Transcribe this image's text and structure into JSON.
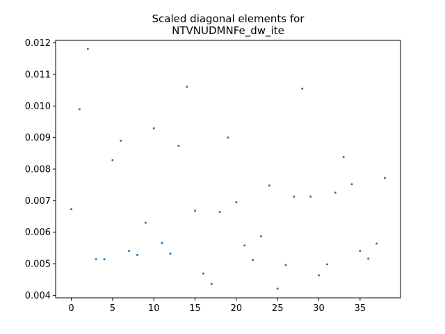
{
  "chart_data": {
    "type": "scatter",
    "title_lines": [
      "Scaled diagonal elements for",
      "NTVNUDMNFe_dw_ite"
    ],
    "xlabel": "",
    "ylabel": "",
    "xlim": [
      -1.9,
      39.9
    ],
    "ylim": [
      0.00392,
      0.01208
    ],
    "x_ticks": [
      0,
      5,
      10,
      15,
      20,
      25,
      30,
      35
    ],
    "y_ticks": [
      0.004,
      0.005,
      0.006,
      0.007,
      0.008,
      0.009,
      0.01,
      0.011,
      0.012
    ],
    "y_tick_labels": [
      "0.004",
      "0.005",
      "0.006",
      "0.007",
      "0.008",
      "0.009",
      "0.010",
      "0.011",
      "0.012"
    ],
    "grid": false,
    "marker_color": "#1f77b4",
    "x": [
      0,
      1,
      2,
      3,
      4,
      5,
      6,
      7,
      8,
      9,
      10,
      11,
      12,
      13,
      14,
      15,
      16,
      17,
      18,
      19,
      20,
      21,
      22,
      23,
      24,
      25,
      26,
      27,
      28,
      29,
      30,
      31,
      32,
      33,
      34,
      35,
      36,
      37,
      38
    ],
    "y": [
      0.00673,
      0.0099,
      0.01181,
      0.00514,
      0.00514,
      0.00828,
      0.0089,
      0.00541,
      0.00528,
      0.0063,
      0.00929,
      0.00566,
      0.00532,
      0.00874,
      0.01061,
      0.00668,
      0.00469,
      0.00436,
      0.00664,
      0.009,
      0.00695,
      0.00558,
      0.00512,
      0.00587,
      0.00748,
      0.00421,
      0.00496,
      0.00713,
      0.01055,
      0.00713,
      0.00463,
      0.00498,
      0.00725,
      0.00838,
      0.00752,
      0.00541,
      0.00516,
      0.00564,
      0.00772
    ]
  }
}
